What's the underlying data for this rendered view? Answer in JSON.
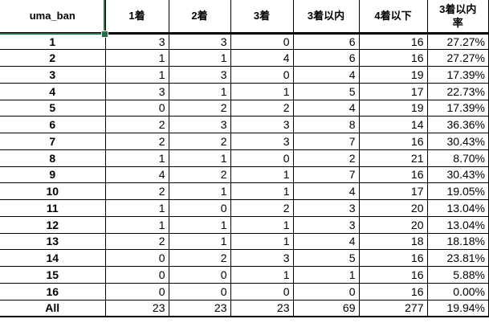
{
  "app": {
    "selection_color": "#217346",
    "selected_cell": "uma_ban header"
  },
  "table": {
    "headers": [
      "uma_ban",
      "1着",
      "2着",
      "3着",
      "3着以内",
      "4着以下",
      "3着以内\n率"
    ],
    "rows": [
      [
        "1",
        "3",
        "3",
        "0",
        "6",
        "16",
        "27.27%"
      ],
      [
        "2",
        "1",
        "1",
        "4",
        "6",
        "16",
        "27.27%"
      ],
      [
        "3",
        "1",
        "3",
        "0",
        "4",
        "19",
        "17.39%"
      ],
      [
        "4",
        "3",
        "1",
        "1",
        "5",
        "17",
        "22.73%"
      ],
      [
        "5",
        "0",
        "2",
        "2",
        "4",
        "19",
        "17.39%"
      ],
      [
        "6",
        "2",
        "3",
        "3",
        "8",
        "14",
        "36.36%"
      ],
      [
        "7",
        "2",
        "2",
        "3",
        "7",
        "16",
        "30.43%"
      ],
      [
        "8",
        "1",
        "1",
        "0",
        "2",
        "21",
        "8.70%"
      ],
      [
        "9",
        "4",
        "2",
        "1",
        "7",
        "16",
        "30.43%"
      ],
      [
        "10",
        "2",
        "1",
        "1",
        "4",
        "17",
        "19.05%"
      ],
      [
        "11",
        "1",
        "0",
        "2",
        "3",
        "20",
        "13.04%"
      ],
      [
        "12",
        "1",
        "1",
        "1",
        "3",
        "20",
        "13.04%"
      ],
      [
        "13",
        "2",
        "1",
        "1",
        "4",
        "18",
        "18.18%"
      ],
      [
        "14",
        "0",
        "2",
        "3",
        "5",
        "16",
        "23.81%"
      ],
      [
        "15",
        "0",
        "0",
        "1",
        "1",
        "16",
        "5.88%"
      ],
      [
        "16",
        "0",
        "0",
        "0",
        "0",
        "16",
        "0.00%"
      ],
      [
        "All",
        "23",
        "23",
        "23",
        "69",
        "277",
        "19.94%"
      ]
    ]
  }
}
